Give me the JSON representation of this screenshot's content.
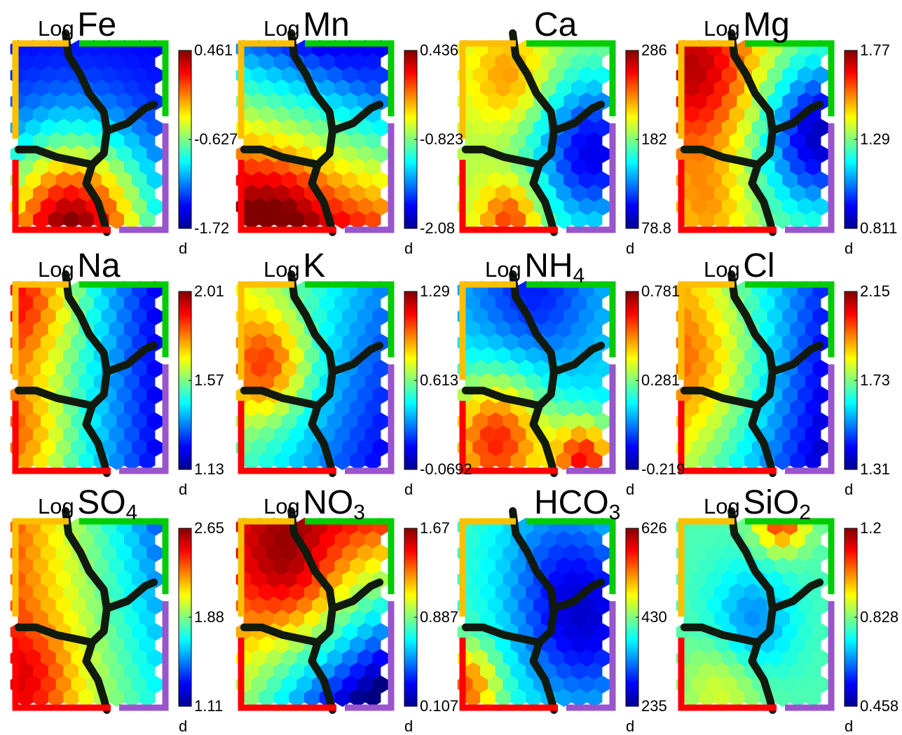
{
  "chart_data": {
    "type": "heatmap",
    "colormap": "jet",
    "boundary_colors": {
      "top_left": "#ffbf00",
      "top_right": "#00cc00",
      "right": "#9955cc",
      "bottom_left": "#ff0000",
      "lines": "#111a0f"
    },
    "unit_label": "d",
    "panels": [
      {
        "prefix": "Log",
        "name": "Fe",
        "sub": "",
        "ticks": [
          "0.461",
          "-0.627",
          "-1.72"
        ]
      },
      {
        "prefix": "Log",
        "name": "Mn",
        "sub": "",
        "ticks": [
          "0.436",
          "-0.823",
          "-2.08"
        ]
      },
      {
        "prefix": "",
        "name": "Ca",
        "sub": "",
        "ticks": [
          "286",
          "182",
          "78.8"
        ]
      },
      {
        "prefix": "Log",
        "name": "Mg",
        "sub": "",
        "ticks": [
          "1.77",
          "1.29",
          "0.811"
        ]
      },
      {
        "prefix": "Log",
        "name": "Na",
        "sub": "",
        "ticks": [
          "2.01",
          "1.57",
          "1.13"
        ]
      },
      {
        "prefix": "Log",
        "name": "K",
        "sub": "",
        "ticks": [
          "1.29",
          "0.613",
          "-0.0692"
        ]
      },
      {
        "prefix": "Log",
        "name": "NH",
        "sub": "4",
        "ticks": [
          "0.781",
          "0.281",
          "-0.219"
        ]
      },
      {
        "prefix": "Log",
        "name": "Cl",
        "sub": "",
        "ticks": [
          "2.15",
          "1.73",
          "1.31"
        ]
      },
      {
        "prefix": "Log",
        "name": "SO",
        "sub": "4",
        "ticks": [
          "2.65",
          "1.88",
          "1.11"
        ]
      },
      {
        "prefix": "Log",
        "name": "NO",
        "sub": "3",
        "ticks": [
          "1.67",
          "0.887",
          "0.107"
        ]
      },
      {
        "prefix": "",
        "name": "HCO",
        "sub": "3",
        "ticks": [
          "626",
          "430",
          "235"
        ]
      },
      {
        "prefix": "Log",
        "name": "SiO",
        "sub": "2",
        "ticks": [
          "1.2",
          "0.828",
          "0.458"
        ]
      }
    ]
  }
}
